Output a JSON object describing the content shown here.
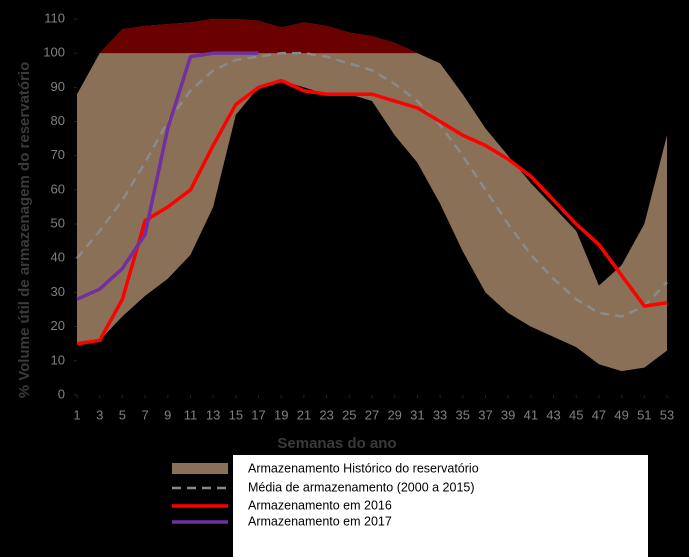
{
  "chart_data": {
    "type": "band-line",
    "x_label": "Semanas do ano",
    "y_label": "% Volume útil de armazenagem do reservatório",
    "x": [
      1,
      3,
      5,
      7,
      9,
      11,
      13,
      15,
      17,
      19,
      21,
      23,
      25,
      27,
      29,
      31,
      33,
      35,
      37,
      39,
      41,
      43,
      45,
      47,
      49,
      51,
      53
    ],
    "xlim": [
      1,
      53
    ],
    "xticks": [
      1,
      3,
      5,
      7,
      9,
      11,
      13,
      15,
      17,
      19,
      21,
      23,
      25,
      27,
      29,
      31,
      33,
      35,
      37,
      39,
      41,
      43,
      45,
      47,
      49,
      51,
      53
    ],
    "ylim": [
      0,
      110
    ],
    "yticks": [
      0,
      10,
      20,
      30,
      40,
      50,
      60,
      70,
      80,
      90,
      100,
      110
    ],
    "overflow_threshold": 100,
    "overflow_color": "#6a0000",
    "series": [
      {
        "name": "Armazenamento Histórico do reservatório",
        "type": "band",
        "color": "#8b7058",
        "upper": [
          88,
          100,
          107,
          108,
          108.5,
          109,
          110,
          110,
          109.5,
          107.5,
          109,
          108,
          106,
          105,
          103,
          100,
          97,
          88,
          78,
          70,
          62,
          55,
          48,
          32,
          38,
          50,
          76
        ],
        "lower": [
          15,
          16,
          23,
          29,
          34,
          41,
          55,
          82,
          90,
          92,
          90,
          88,
          88,
          86,
          76,
          68,
          56,
          42,
          30,
          24,
          20,
          17,
          14,
          9,
          7,
          8,
          13
        ]
      },
      {
        "name": "Média de armazenamento (2000 a 2015)",
        "type": "line",
        "color": "#8a8a8a",
        "dashed": true,
        "values": [
          40,
          48,
          57,
          68,
          80,
          89,
          95,
          98,
          99,
          100,
          100,
          99,
          97,
          95,
          91,
          86,
          79,
          70,
          60,
          50,
          41,
          34,
          28,
          24,
          23,
          26,
          33
        ]
      },
      {
        "name": "Armazenamento em 2016",
        "type": "line",
        "color": "#ff0000",
        "dashed": false,
        "values": [
          15,
          16,
          28,
          51,
          55,
          60,
          73,
          85,
          90,
          92,
          89,
          88,
          88,
          88,
          86,
          84,
          80,
          76,
          73,
          69,
          64,
          57,
          50,
          44,
          35,
          26,
          27
        ]
      },
      {
        "name": "Armazenamento em 2017",
        "type": "line",
        "color": "#7030a0",
        "dashed": false,
        "values": [
          28,
          31,
          37,
          47,
          78,
          99,
          100,
          100,
          100,
          null,
          null,
          null,
          null,
          null,
          null,
          null,
          null,
          null,
          null,
          null,
          null,
          null,
          null,
          null,
          null,
          null,
          null
        ]
      }
    ]
  }
}
